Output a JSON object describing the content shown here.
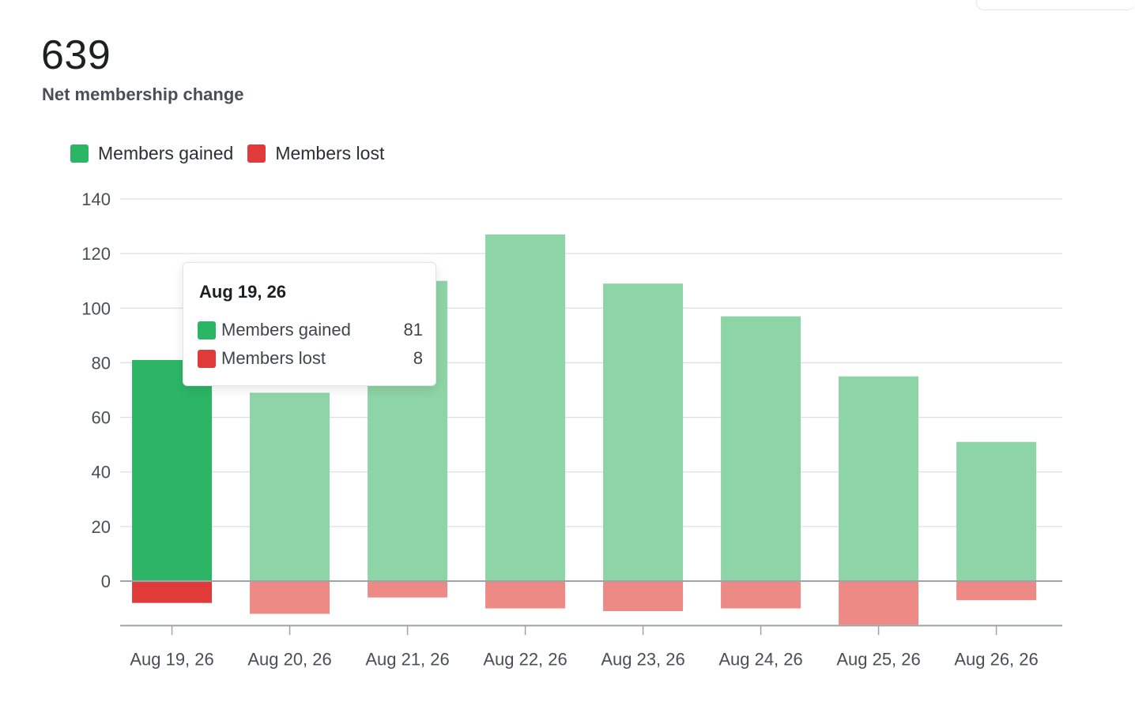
{
  "summary": {
    "value": "639",
    "label": "Net membership change"
  },
  "legend": {
    "gained": "Members gained",
    "lost": "Members lost"
  },
  "colors": {
    "gained": "#2db566",
    "gained_faded": "#8dd4a6",
    "lost": "#e03a3a",
    "lost_faded": "#ee8a86",
    "grid": "#dcdfe3",
    "axis": "#9da3ab",
    "tick_text": "#4a4f57"
  },
  "tooltip": {
    "title": "Aug 19, 26",
    "gained_label": "Members gained",
    "gained_value": "81",
    "lost_label": "Members lost",
    "lost_value": "8"
  },
  "chart_data": {
    "type": "bar",
    "stacked": true,
    "categories": [
      "Aug 19, 26",
      "Aug 20, 26",
      "Aug 21, 26",
      "Aug 22, 26",
      "Aug 23, 26",
      "Aug 24, 26",
      "Aug 25, 26",
      "Aug 26, 26"
    ],
    "series": [
      {
        "name": "Members gained",
        "values": [
          81,
          69,
          110,
          127,
          109,
          97,
          75,
          51
        ]
      },
      {
        "name": "Members lost",
        "values": [
          -8,
          -12,
          -6,
          -10,
          -11,
          -10,
          -16,
          -7
        ]
      }
    ],
    "highlighted_index": 0,
    "yticks": [
      0,
      20,
      40,
      60,
      80,
      100,
      120,
      140
    ],
    "ylim": [
      -16,
      140
    ],
    "grid": true,
    "legend_position": "top-left"
  }
}
